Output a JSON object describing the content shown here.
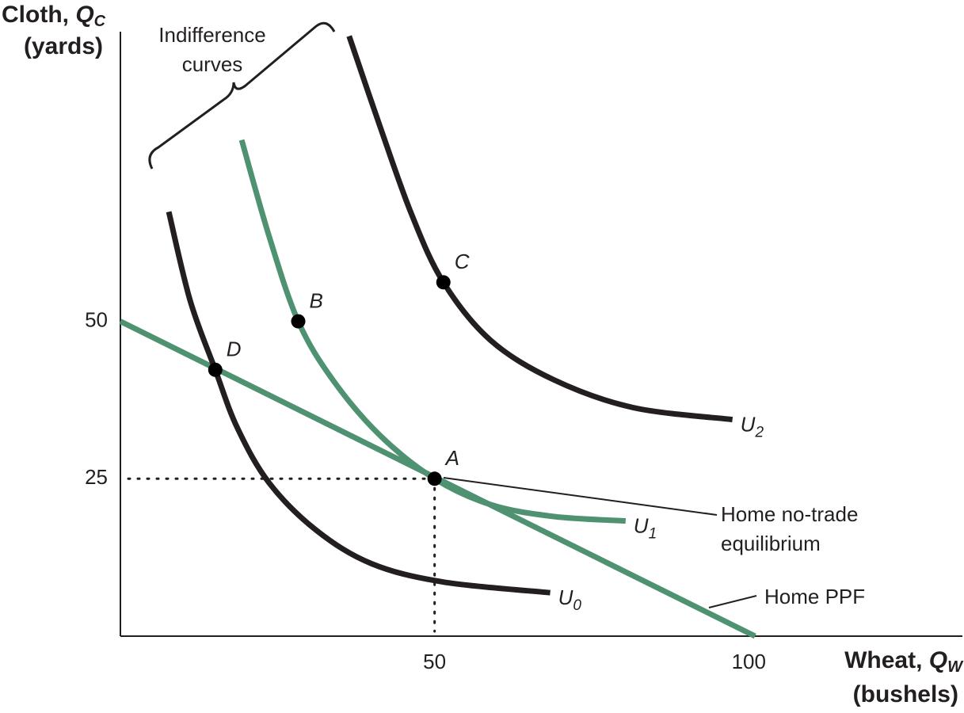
{
  "chart_data": {
    "type": "line",
    "x_label": {
      "text": "Wheat, ",
      "symbol": "Q",
      "subscript": "W",
      "unit": "(bushels)"
    },
    "y_label": {
      "text": "Cloth, ",
      "symbol": "Q",
      "subscript": "C",
      "unit": "(yards)"
    },
    "xlim": [
      0,
      134
    ],
    "ylim": [
      0,
      96
    ],
    "xticks": [
      50,
      100
    ],
    "yticks": [
      25,
      50
    ],
    "series": [
      {
        "name": "Home PPF",
        "color": "#4f9272",
        "x": [
          0,
          101
        ],
        "values": [
          50,
          0
        ]
      },
      {
        "name": "U",
        "subscript": "0",
        "color": "#231f20",
        "x": [
          7.7,
          11.1,
          15.1,
          18.6,
          23.7,
          31.2,
          40,
          51.4,
          68.4
        ],
        "values": [
          67.4,
          53.3,
          42.3,
          33.1,
          24.3,
          16.8,
          11.5,
          8.6,
          6.9
        ]
      },
      {
        "name": "U",
        "subscript": "1",
        "color": "#4f9272",
        "x": [
          19.3,
          23.7,
          28.3,
          33.8,
          41.3,
          50,
          58.9,
          69,
          80.4
        ],
        "values": [
          78.8,
          63.4,
          50,
          40.7,
          31.9,
          25,
          20.9,
          19,
          18.3
        ]
      },
      {
        "name": "U",
        "subscript": "2",
        "color": "#231f20",
        "x": [
          36.4,
          41.3,
          46.3,
          51.4,
          58.9,
          69,
          81.6,
          97.4
        ],
        "values": [
          95.3,
          81,
          67.1,
          56.2,
          47,
          40.7,
          36.3,
          34.4
        ]
      }
    ],
    "points": [
      {
        "label": "A",
        "x": 50,
        "y": 25
      },
      {
        "label": "B",
        "x": 28.3,
        "y": 50
      },
      {
        "label": "C",
        "x": 51.4,
        "y": 56.2
      },
      {
        "label": "D",
        "x": 15.1,
        "y": 42.3
      }
    ],
    "annotations": {
      "indifference": [
        "Indifference",
        "curves"
      ],
      "equilibrium": [
        "Home no-trade",
        "equilibrium"
      ]
    }
  }
}
